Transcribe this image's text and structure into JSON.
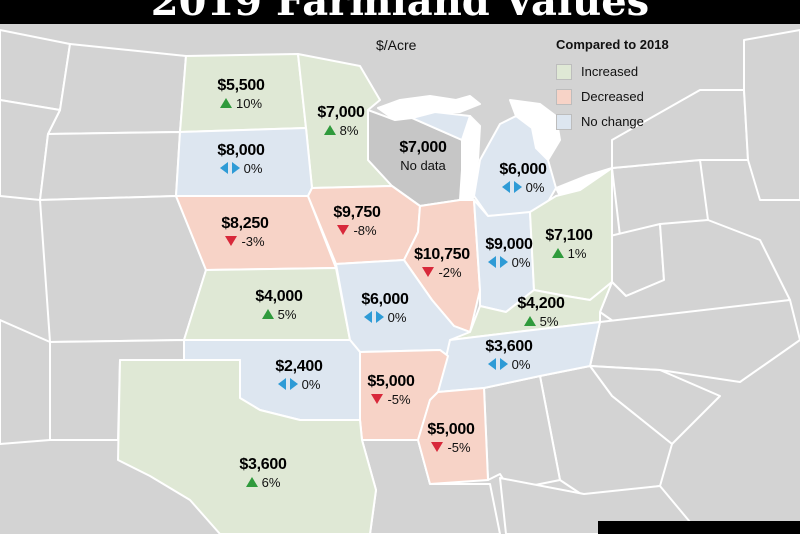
{
  "title": "2019 Farmland Values",
  "unit_label": "$/Acre",
  "legend": {
    "title": "Compared to 2018",
    "items": [
      {
        "label": "Increased",
        "color": "#dfe8d5"
      },
      {
        "label": "Decreased",
        "color": "#f7d3c7"
      },
      {
        "label": "No change",
        "color": "#dde6f0"
      }
    ]
  },
  "colors": {
    "background_state": "#d3d3d3",
    "border": "#ffffff",
    "up_arrow": "#2f9a3c",
    "down_arrow": "#d8283a",
    "no_change_arrow": "#2e9bd6"
  },
  "states": {
    "north_dakota": {
      "value": "$5,500",
      "change": "10%",
      "trend": "up"
    },
    "minnesota": {
      "value": "$7,000",
      "change": "8%",
      "trend": "up"
    },
    "wisconsin": {
      "value": "$7,000",
      "note": "No data",
      "trend": "none"
    },
    "michigan": {
      "value": "$6,000",
      "change": "0%",
      "trend": "same"
    },
    "south_dakota": {
      "value": "$8,000",
      "change": "0%",
      "trend": "same"
    },
    "nebraska": {
      "value": "$8,250",
      "change": "-3%",
      "trend": "down"
    },
    "iowa": {
      "value": "$9,750",
      "change": "-8%",
      "trend": "down"
    },
    "illinois": {
      "value": "$10,750",
      "change": "-2%",
      "trend": "down"
    },
    "indiana": {
      "value": "$9,000",
      "change": "0%",
      "trend": "same"
    },
    "ohio": {
      "value": "$7,100",
      "change": "1%",
      "trend": "up"
    },
    "kansas": {
      "value": "$4,000",
      "change": "5%",
      "trend": "up"
    },
    "missouri": {
      "value": "$6,000",
      "change": "0%",
      "trend": "same"
    },
    "kentucky": {
      "value": "$4,200",
      "change": "5%",
      "trend": "up"
    },
    "tennessee": {
      "value": "$3,600",
      "change": "0%",
      "trend": "same"
    },
    "oklahoma": {
      "value": "$2,400",
      "change": "0%",
      "trend": "same"
    },
    "arkansas": {
      "value": "$5,000",
      "change": "-5%",
      "trend": "down"
    },
    "mississippi": {
      "value": "$5,000",
      "change": "-5%",
      "trend": "down"
    },
    "texas": {
      "value": "$3,600",
      "change": "6%",
      "trend": "up"
    }
  }
}
